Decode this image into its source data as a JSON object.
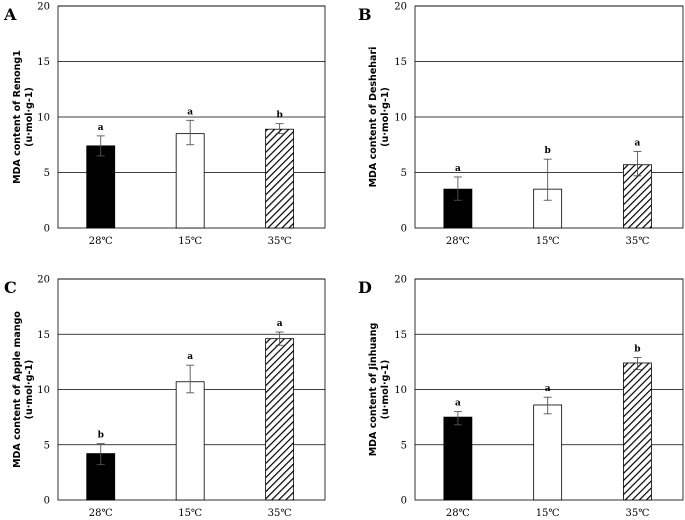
{
  "chart_data": [
    {
      "type": "bar",
      "panel_label": "A",
      "ylabel": [
        "MDA content of Renong1",
        "(u·mol·g-1)"
      ],
      "ylim": [
        0,
        20
      ],
      "yticks": [
        0,
        5,
        10,
        15,
        20
      ],
      "grid": true,
      "categories": [
        "28℃",
        "15℃",
        "35℃"
      ],
      "values": [
        7.4,
        8.5,
        8.9
      ],
      "error_low": [
        6.5,
        7.5,
        8.5
      ],
      "error_high": [
        8.3,
        9.7,
        9.4
      ],
      "significance": [
        "a",
        "a",
        "b"
      ],
      "bar_styles": [
        "solid",
        "empty",
        "hatched"
      ]
    },
    {
      "type": "bar",
      "panel_label": "B",
      "ylabel": [
        "MDA content of Deshehari",
        "(u·mol·g-1)"
      ],
      "ylim": [
        0,
        20
      ],
      "yticks": [
        0,
        5,
        10,
        15,
        20
      ],
      "grid": true,
      "categories": [
        "28℃",
        "15℃",
        "35℃"
      ],
      "values": [
        3.5,
        3.5,
        5.7
      ],
      "error_low": [
        2.5,
        2.5,
        4.7
      ],
      "error_high": [
        4.6,
        6.2,
        6.9
      ],
      "significance": [
        "a",
        "b",
        "a"
      ],
      "bar_styles": [
        "solid",
        "empty",
        "hatched"
      ]
    },
    {
      "type": "bar",
      "panel_label": "C",
      "ylabel": [
        "MDA content of Apple mango",
        "(u·mol·g-1)"
      ],
      "ylim": [
        0,
        20
      ],
      "yticks": [
        0,
        5,
        10,
        15,
        20
      ],
      "grid": true,
      "categories": [
        "28℃",
        "15℃",
        "35℃"
      ],
      "values": [
        4.2,
        10.7,
        14.6
      ],
      "error_low": [
        3.2,
        9.7,
        14.0
      ],
      "error_high": [
        5.1,
        12.2,
        15.2
      ],
      "significance": [
        "b",
        "a",
        "a"
      ],
      "bar_styles": [
        "solid",
        "empty",
        "hatched"
      ]
    },
    {
      "type": "bar",
      "panel_label": "D",
      "ylabel": [
        "MDA content of Jinhuang",
        "(u·mol·g-1)"
      ],
      "ylim": [
        0,
        20
      ],
      "yticks": [
        0,
        5,
        10,
        15,
        20
      ],
      "grid": true,
      "categories": [
        "28℃",
        "15℃",
        "35℃"
      ],
      "values": [
        7.5,
        8.6,
        12.4
      ],
      "error_low": [
        6.8,
        7.8,
        11.8
      ],
      "error_high": [
        8.0,
        9.3,
        12.9
      ],
      "significance": [
        "a",
        "a",
        "b"
      ],
      "bar_styles": [
        "solid",
        "empty",
        "hatched"
      ]
    }
  ],
  "colors": {
    "bar_solid": "#000000",
    "bar_empty": "#ffffff",
    "outline": "#000000",
    "grid": "#000000"
  }
}
